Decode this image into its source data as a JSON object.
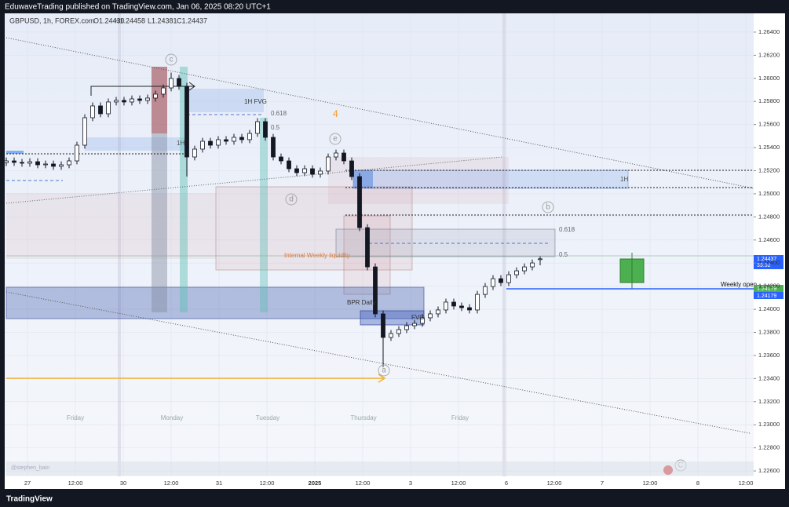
{
  "chart_data": {
    "type": "candlestick",
    "title": "EduwaveTrading published on TradingView.com, Jan 06, 2025 08:20 UTC+1",
    "symbol": "GBPUSD, 1h, FOREX.com",
    "ohlc_header": [
      "O1.24430",
      "H1.24458",
      "L1.24381",
      "C1.24437"
    ],
    "brand": "TradingView",
    "watermark": "@stephen_bain",
    "up_color": "#ffffff",
    "down_color": "#131722",
    "open": [
      1.2527,
      1.25285,
      1.25272,
      1.25265,
      1.25278,
      1.25251,
      1.25258,
      1.25238,
      1.25251,
      1.25285,
      1.25421,
      1.25659,
      1.25761,
      1.25693,
      1.25795,
      1.25809,
      1.25795,
      1.25822,
      1.25809,
      1.25829,
      1.25863,
      1.25917,
      1.25999,
      1.25931,
      1.25319,
      1.25387,
      1.25455,
      1.25421,
      1.25469,
      1.25455,
      1.25489,
      1.25469,
      1.25523,
      1.25625,
      1.25489,
      1.25319,
      1.25285,
      1.25217,
      1.25183,
      1.25217,
      1.2517,
      1.25197,
      1.25319,
      1.25353,
      1.25285,
      1.25149,
      1.24707,
      1.24367,
      1.2396,
      1.23756,
      1.2379,
      1.23824,
      1.23858,
      1.23878,
      1.23926,
      1.2396,
      1.23994,
      1.24062,
      1.24028,
      1.24014,
      1.23994,
      1.24129,
      1.24197,
      1.24265,
      1.24231,
      1.24299,
      1.24333,
      1.24367,
      1.2443
    ],
    "high": [
      1.25315,
      1.25315,
      1.25302,
      1.25308,
      1.25308,
      1.25288,
      1.25288,
      1.25281,
      1.25315,
      1.25451,
      1.25689,
      1.25791,
      1.25791,
      1.25825,
      1.25839,
      1.25839,
      1.25852,
      1.25852,
      1.25859,
      1.25893,
      1.25947,
      1.2605,
      1.26029,
      1.25961,
      1.25417,
      1.25485,
      1.25485,
      1.25499,
      1.25499,
      1.25519,
      1.25519,
      1.25553,
      1.25655,
      1.25655,
      1.25519,
      1.25349,
      1.25315,
      1.25247,
      1.25247,
      1.25247,
      1.25227,
      1.25349,
      1.25383,
      1.25383,
      1.25315,
      1.25179,
      1.24737,
      1.24397,
      1.2399,
      1.2382,
      1.23854,
      1.23888,
      1.23908,
      1.23956,
      1.2399,
      1.24024,
      1.24092,
      1.24092,
      1.24058,
      1.24044,
      1.24159,
      1.24227,
      1.24295,
      1.24295,
      1.24329,
      1.24363,
      1.24397,
      1.24431,
      1.24458
    ],
    "low": [
      1.2524,
      1.25242,
      1.25235,
      1.25235,
      1.25221,
      1.25221,
      1.25208,
      1.25208,
      1.25221,
      1.25255,
      1.25391,
      1.25629,
      1.25663,
      1.25663,
      1.25765,
      1.25765,
      1.25765,
      1.25779,
      1.25779,
      1.25799,
      1.25833,
      1.25887,
      1.25901,
      1.2515,
      1.25289,
      1.25357,
      1.25391,
      1.25391,
      1.25425,
      1.25425,
      1.25439,
      1.25439,
      1.25493,
      1.25459,
      1.25289,
      1.25255,
      1.25187,
      1.25153,
      1.25153,
      1.2514,
      1.2514,
      1.25167,
      1.25289,
      1.25255,
      1.25119,
      1.24677,
      1.24337,
      1.2393,
      1.235,
      1.23726,
      1.2376,
      1.23794,
      1.23828,
      1.23848,
      1.23896,
      1.2393,
      1.23964,
      1.23998,
      1.23984,
      1.23964,
      1.23964,
      1.24099,
      1.24167,
      1.24201,
      1.24201,
      1.24269,
      1.24303,
      1.24337,
      1.24381
    ],
    "close": [
      1.25285,
      1.25272,
      1.25265,
      1.25278,
      1.25251,
      1.25258,
      1.25238,
      1.25251,
      1.25285,
      1.25421,
      1.25659,
      1.25761,
      1.25693,
      1.25795,
      1.25809,
      1.25795,
      1.25822,
      1.25809,
      1.25829,
      1.25863,
      1.25917,
      1.25999,
      1.25931,
      1.25319,
      1.25387,
      1.25455,
      1.25421,
      1.25469,
      1.25455,
      1.25489,
      1.25469,
      1.25523,
      1.25625,
      1.25489,
      1.25319,
      1.25285,
      1.25217,
      1.25183,
      1.25217,
      1.2517,
      1.25197,
      1.25319,
      1.25353,
      1.25285,
      1.25149,
      1.24707,
      1.24367,
      1.2396,
      1.23756,
      1.2379,
      1.23824,
      1.23858,
      1.23878,
      1.23926,
      1.2396,
      1.23994,
      1.24062,
      1.24028,
      1.24014,
      1.23994,
      1.24129,
      1.24197,
      1.24265,
      1.24231,
      1.24299,
      1.24333,
      1.24367,
      1.24401,
      1.24437
    ],
    "ylim": [
      1.22546,
      1.26556
    ],
    "yticks": [
      {
        "value": 1.226,
        "label": "1.22600"
      },
      {
        "value": 1.228,
        "label": "1.22800"
      },
      {
        "value": 1.23,
        "label": "1.23000"
      },
      {
        "value": 1.232,
        "label": "1.23200"
      },
      {
        "value": 1.234,
        "label": "1.23400"
      },
      {
        "value": 1.236,
        "label": "1.23600"
      },
      {
        "value": 1.238,
        "label": "1.23800"
      },
      {
        "value": 1.24,
        "label": "1.24000"
      },
      {
        "value": 1.242,
        "label": "1.24200"
      },
      {
        "value": 1.244,
        "label": "1.24400"
      },
      {
        "value": 1.246,
        "label": "1.24600"
      },
      {
        "value": 1.248,
        "label": "1.24800"
      },
      {
        "value": 1.25,
        "label": "1.25000"
      },
      {
        "value": 1.252,
        "label": "1.25200"
      },
      {
        "value": 1.254,
        "label": "1.25400"
      },
      {
        "value": 1.256,
        "label": "1.25600"
      },
      {
        "value": 1.258,
        "label": "1.25800"
      },
      {
        "value": 1.26,
        "label": "1.26000"
      },
      {
        "value": 1.262,
        "label": "1.26200"
      },
      {
        "value": 1.264,
        "label": "1.26400"
      }
    ],
    "xticks": [
      "27",
      "12:00",
      "30",
      "12:00",
      "31",
      "12:00",
      "2025",
      "12:00",
      "3",
      "12:00",
      "6",
      "12:00",
      "7",
      "12:00",
      "8",
      "12:00"
    ],
    "day_labels": [
      "Friday",
      "Monday",
      "Tuesday",
      "Thursday",
      "Friday"
    ],
    "price_labels": [
      "1.24437",
      "39:52",
      "1.24179",
      "1.24179"
    ],
    "annotations": [
      "1H FVG",
      "0.618",
      "0.5",
      "1H",
      "4",
      "Internal Weekly liquidity",
      "BPR Daily",
      "FVG",
      "0.618",
      "0.5",
      "1H",
      "Weekly open",
      "c",
      "e",
      "d",
      "b",
      "a",
      "C"
    ]
  }
}
